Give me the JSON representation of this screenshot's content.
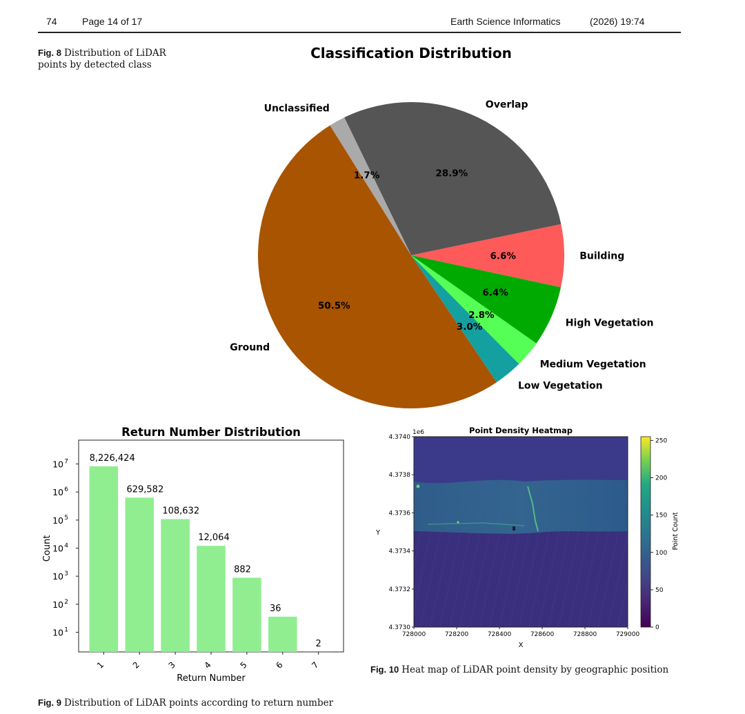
{
  "header": {
    "page_number": "74",
    "page_of": "Page 14 of 17",
    "journal": "Earth Science Informatics",
    "year_volume": "(2026) 19:74"
  },
  "captions": {
    "fig8_label": "Fig. 8",
    "fig8_text": "Distribution of LiDAR points by detected class",
    "fig9_label": "Fig. 9",
    "fig9_text": "Distribution of LiDAR points according to return number",
    "fig10_label": "Fig. 10",
    "fig10_text": "Heat map of LiDAR point density by geographic position"
  },
  "chart_data": [
    {
      "type": "pie",
      "title": "Classification Distribution",
      "slices": [
        {
          "label": "Ground",
          "percent": 50.5,
          "color": "#a85400"
        },
        {
          "label": "Low Vegetation",
          "percent": 3.0,
          "color": "#14a0a0"
        },
        {
          "label": "Medium Vegetation",
          "percent": 2.8,
          "color": "#55ff55"
        },
        {
          "label": "High Vegetation",
          "percent": 6.4,
          "color": "#00aa00"
        },
        {
          "label": "Building",
          "percent": 6.6,
          "color": "#ff5a5a"
        },
        {
          "label": "Overlap",
          "percent": 28.9,
          "color": "#555555"
        },
        {
          "label": "Unclassified",
          "percent": 1.7,
          "color": "#aaaaaa"
        }
      ],
      "value_labels": [
        "50.5%",
        "3.0%",
        "2.8%",
        "6.4%",
        "6.6%",
        "28.9%",
        "1.7%"
      ]
    },
    {
      "type": "bar",
      "title": "Return Number Distribution",
      "xlabel": "Return Number",
      "ylabel": "Count",
      "yscale": "log",
      "categories": [
        "1",
        "2",
        "3",
        "4",
        "5",
        "6",
        "7"
      ],
      "values": [
        8226424,
        629582,
        108632,
        12064,
        882,
        36,
        2
      ],
      "value_labels": [
        "8,226,424",
        "629,582",
        "108,632",
        "12,064",
        "882",
        "36",
        "2"
      ],
      "ytick_bases": [
        "10",
        "10",
        "10",
        "10",
        "10",
        "10",
        "10"
      ],
      "ytick_exponents": [
        "1",
        "2",
        "3",
        "4",
        "5",
        "6",
        "7"
      ],
      "color": "#90ee90"
    },
    {
      "type": "heatmap",
      "title": "Point Density Heatmap",
      "xlabel": "X",
      "ylabel": "Y",
      "y_offset_label": "1e6",
      "x_ticks": [
        "728000",
        "728200",
        "728400",
        "728600",
        "728800",
        "729000"
      ],
      "y_ticks": [
        "4.3730",
        "4.3732",
        "4.3734",
        "4.3736",
        "4.3738",
        "4.3740"
      ],
      "xlim": [
        728000,
        729000
      ],
      "ylim": [
        4.373,
        4.374
      ],
      "colorbar_label": "Point Count",
      "colorbar_ticks": [
        "0",
        "50",
        "100",
        "150",
        "200",
        "250"
      ],
      "colorbar_range": [
        0,
        255
      ],
      "colormap": "viridis"
    }
  ]
}
